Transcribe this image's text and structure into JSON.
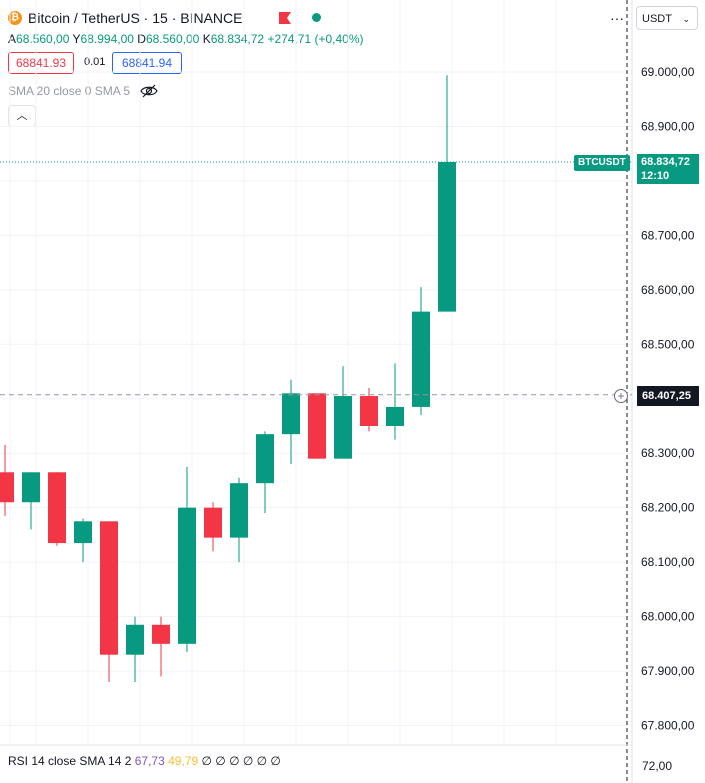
{
  "header": {
    "symbol_title": "Bitcoin / TetherUS · 15 · BINANCE",
    "coin_icon": "bitcoin-icon",
    "flag_icon": "flag-icon",
    "more_label": "···",
    "currency": "USDT"
  },
  "ohlc": {
    "open_key": "A",
    "open": "68.560,00",
    "high_key": "Y",
    "high": "68.994,00",
    "low_key": "D",
    "low": "68.560,00",
    "close_key": "K",
    "close": "68.834,72",
    "change": "+274,71 (+0,40%)"
  },
  "quote": {
    "bid": "68841.93",
    "spread": "0.01",
    "ask": "68841.94"
  },
  "indicator": {
    "sma_label": "SMA 20 close 0 SMA 5",
    "eye_icon": "eye-off-icon",
    "collapse_icon": "chevron-up-icon"
  },
  "rsi": {
    "label": "RSI 14 close SMA 14 2",
    "value1": "67,73",
    "value2": "49,79",
    "rest": "∅ ∅ ∅ ∅ ∅ ∅",
    "scale": "72,00"
  },
  "price_axis": {
    "labels": [
      "69.000,00",
      "68.900,00",
      "68.700,00",
      "68.600,00",
      "68.500,00",
      "68.300,00",
      "68.200,00",
      "68.100,00",
      "68.000,00",
      "67.900,00",
      "67.800,00"
    ]
  },
  "last_price": {
    "symbol": "BTCUSDT",
    "price": "68.834,72",
    "countdown": "12:10"
  },
  "crosshair": {
    "price": "68.407,25"
  },
  "colors": {
    "up": "#089981",
    "down": "#f23645"
  },
  "candles": [
    {
      "o": 68265,
      "h": 68315,
      "l": 68185,
      "c": 68210
    },
    {
      "o": 68210,
      "h": 68265,
      "l": 68160,
      "c": 68265
    },
    {
      "o": 68265,
      "h": 68265,
      "l": 68130,
      "c": 68135
    },
    {
      "o": 68135,
      "h": 68180,
      "l": 68100,
      "c": 68175
    },
    {
      "o": 68175,
      "h": 68175,
      "l": 67880,
      "c": 67930
    },
    {
      "o": 67930,
      "h": 68000,
      "l": 67880,
      "c": 67985
    },
    {
      "o": 67985,
      "h": 68000,
      "l": 67890,
      "c": 67950
    },
    {
      "o": 67950,
      "h": 68275,
      "l": 67935,
      "c": 68200
    },
    {
      "o": 68200,
      "h": 68210,
      "l": 68120,
      "c": 68145
    },
    {
      "o": 68145,
      "h": 68255,
      "l": 68100,
      "c": 68245
    },
    {
      "o": 68245,
      "h": 68340,
      "l": 68190,
      "c": 68335
    },
    {
      "o": 68335,
      "h": 68435,
      "l": 68280,
      "c": 68410
    },
    {
      "o": 68410,
      "h": 68410,
      "l": 68290,
      "c": 68290
    },
    {
      "o": 68290,
      "h": 68460,
      "l": 68290,
      "c": 68405
    },
    {
      "o": 68405,
      "h": 68420,
      "l": 68340,
      "c": 68350
    },
    {
      "o": 68350,
      "h": 68465,
      "l": 68325,
      "c": 68385
    },
    {
      "o": 68385,
      "h": 68605,
      "l": 68370,
      "c": 68560
    },
    {
      "o": 68560,
      "h": 68994,
      "l": 68560,
      "c": 68834.72
    }
  ]
}
